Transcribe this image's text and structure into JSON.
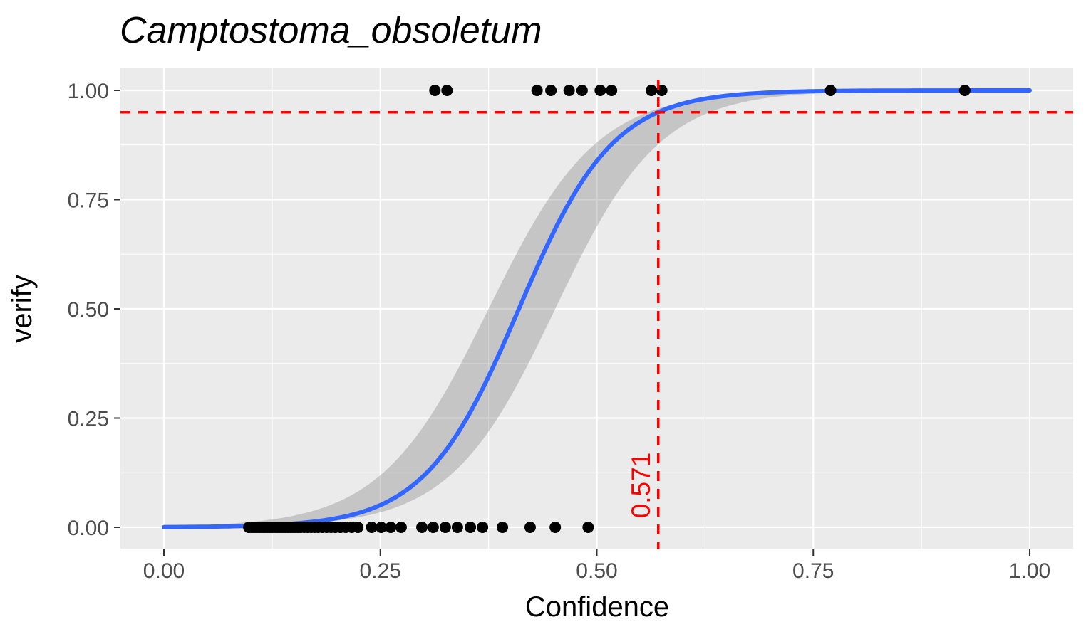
{
  "figure": {
    "background": "#FFFFFF"
  },
  "chart_data": {
    "type": "scatter",
    "title": "Camptostoma_obsoletum",
    "xlabel": "Confidence",
    "ylabel": "verify",
    "xlim": [
      0,
      1
    ],
    "ylim": [
      0,
      1
    ],
    "grid": true,
    "legend_position": "none",
    "x_ticks": [
      0,
      0.25,
      0.5,
      0.75,
      1
    ],
    "x_tick_labels": [
      "0.00",
      "0.25",
      "0.50",
      "0.75",
      "1.00"
    ],
    "y_ticks": [
      0,
      0.25,
      0.5,
      0.75,
      1
    ],
    "y_tick_labels": [
      "0.00",
      "0.25",
      "0.50",
      "0.75",
      "1.00"
    ],
    "threshold": {
      "x": 0.571,
      "y": 0.95,
      "label": "0.571"
    },
    "fit_curve": {
      "model": "logistic",
      "k": 18.3,
      "x0": 0.41
    },
    "ribbon": {
      "upper": {
        "k": 16.0,
        "x0": 0.375
      },
      "lower": {
        "k": 16.5,
        "x0": 0.452
      }
    },
    "points_y1_x": [
      0.313,
      0.327,
      0.431,
      0.447,
      0.468,
      0.483,
      0.504,
      0.517,
      0.563,
      0.575,
      0.77,
      0.925
    ],
    "points_y0_x": [
      0.098,
      0.101,
      0.104,
      0.107,
      0.11,
      0.113,
      0.116,
      0.119,
      0.122,
      0.125,
      0.128,
      0.131,
      0.134,
      0.137,
      0.14,
      0.143,
      0.146,
      0.149,
      0.152,
      0.155,
      0.158,
      0.162,
      0.166,
      0.17,
      0.174,
      0.178,
      0.183,
      0.188,
      0.193,
      0.198,
      0.204,
      0.21,
      0.217,
      0.224,
      0.24,
      0.251,
      0.262,
      0.274,
      0.298,
      0.311,
      0.325,
      0.339,
      0.354,
      0.368,
      0.391,
      0.423,
      0.452,
      0.49
    ],
    "colors": {
      "panel_bg": "#EBEBEB",
      "grid": "#FFFFFF",
      "curve": "#3366FF",
      "ribbon": "#7A7A7A",
      "ribbon_opacity": 0.33,
      "threshold": "#FF0000",
      "points": "#000000",
      "tick_label": "#4D4D4D",
      "axis_title": "#000000",
      "tick_mark": "#333333"
    }
  }
}
